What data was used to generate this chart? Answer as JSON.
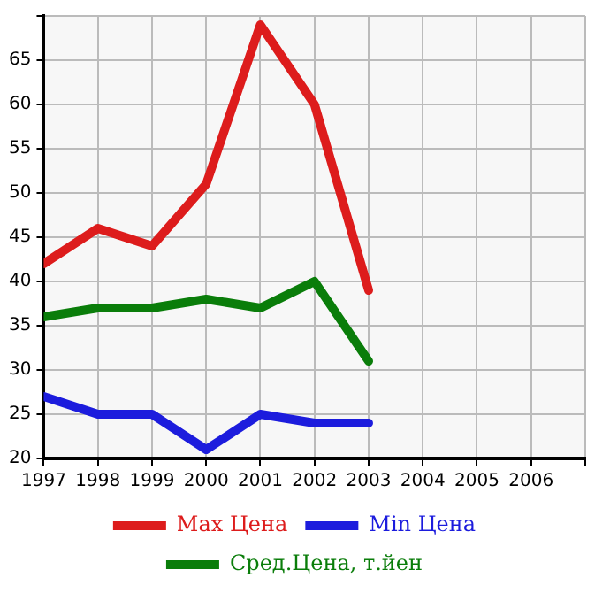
{
  "chart_data": {
    "type": "line",
    "x": [
      1997,
      1998,
      1999,
      2000,
      2001,
      2002,
      2003
    ],
    "xlim": [
      1997,
      2007
    ],
    "xticks": [
      1997,
      1998,
      1999,
      2000,
      2001,
      2002,
      2003,
      2004,
      2005,
      2006,
      {
        "value": 2007,
        "label": null
      }
    ],
    "ylim": [
      20,
      70
    ],
    "yticks": [
      20,
      25,
      30,
      35,
      40,
      45,
      50,
      55,
      60,
      65,
      {
        "value": 70,
        "label": null
      }
    ],
    "grid": true,
    "legend": "bottom",
    "marker": "none",
    "line_style": "solid",
    "series": [
      {
        "name": "Max Цена",
        "color": "#dd1c1c",
        "values": [
          42,
          46,
          44,
          51,
          69,
          60,
          39
        ]
      },
      {
        "name": "Min Цена",
        "color": "#1c1cdd",
        "values": [
          27,
          25,
          25,
          21,
          25,
          24,
          24
        ]
      },
      {
        "name": "Сред.Цена, т.йен",
        "color": "#0a7d0a",
        "values": [
          36,
          37,
          37,
          38,
          37,
          40,
          31
        ]
      }
    ]
  }
}
